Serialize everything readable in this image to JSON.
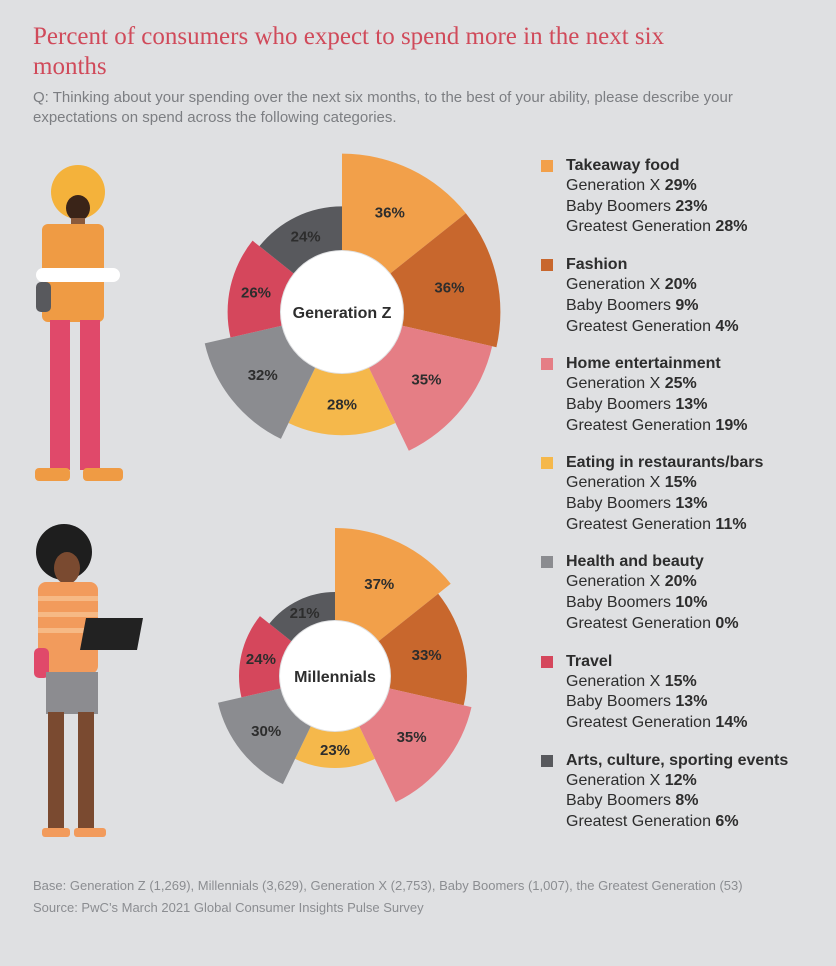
{
  "title": "Percent of consumers who expect to spend more in the next six months",
  "question": "Q: Thinking about your spending over the next six months, to the best of your ability, please describe your expectations on spend across the following categories.",
  "colors": {
    "takeaway": "#f2a04a",
    "fashion": "#c8672d",
    "home": "#e57e85",
    "eating": "#f5b84b",
    "health": "#8b8c90",
    "travel": "#d5475c",
    "arts": "#58595d"
  },
  "chart_data": [
    {
      "type": "pie",
      "title": "Generation Z",
      "categories": [
        "Takeaway food",
        "Fashion",
        "Home entertainment",
        "Eating in restaurants/bars",
        "Health and beauty",
        "Travel",
        "Arts, culture, sporting events"
      ],
      "values": [
        36,
        36,
        35,
        28,
        32,
        26,
        24
      ],
      "labels": [
        "36%",
        "36%",
        "35%",
        "28%",
        "32%",
        "26%",
        "24%"
      ]
    },
    {
      "type": "pie",
      "title": "Millennials",
      "categories": [
        "Takeaway food",
        "Fashion",
        "Home entertainment",
        "Eating in restaurants/bars",
        "Health and beauty",
        "Travel",
        "Arts, culture, sporting events"
      ],
      "values": [
        37,
        33,
        35,
        23,
        30,
        24,
        21
      ],
      "labels": [
        "37%",
        "33%",
        "35%",
        "23%",
        "30%",
        "24%",
        "21%"
      ]
    }
  ],
  "legend": [
    {
      "key": "takeaway",
      "name": "Takeaway food",
      "rows": [
        {
          "label": "Generation X",
          "value": "29%"
        },
        {
          "label": "Baby Boomers",
          "value": "23%"
        },
        {
          "label": "Greatest Generation",
          "value": "28%"
        }
      ]
    },
    {
      "key": "fashion",
      "name": "Fashion",
      "rows": [
        {
          "label": "Generation X",
          "value": "20%"
        },
        {
          "label": "Baby Boomers",
          "value": "9%"
        },
        {
          "label": "Greatest Generation",
          "value": "4%"
        }
      ]
    },
    {
      "key": "home",
      "name": "Home entertainment",
      "rows": [
        {
          "label": "Generation X",
          "value": "25%"
        },
        {
          "label": "Baby Boomers",
          "value": "13%"
        },
        {
          "label": "Greatest Generation",
          "value": "19%"
        }
      ]
    },
    {
      "key": "eating",
      "name": "Eating in restaurants/bars",
      "rows": [
        {
          "label": "Generation X",
          "value": "15%"
        },
        {
          "label": "Baby Boomers",
          "value": "13%"
        },
        {
          "label": "Greatest Generation",
          "value": "11%"
        }
      ]
    },
    {
      "key": "health",
      "name": "Health and beauty",
      "rows": [
        {
          "label": "Generation X",
          "value": "20%"
        },
        {
          "label": "Baby Boomers",
          "value": "10%"
        },
        {
          "label": "Greatest Generation",
          "value": "0%"
        }
      ]
    },
    {
      "key": "travel",
      "name": "Travel",
      "rows": [
        {
          "label": "Generation X",
          "value": "15%"
        },
        {
          "label": "Baby Boomers",
          "value": "13%"
        },
        {
          "label": "Greatest Generation",
          "value": "14%"
        }
      ]
    },
    {
      "key": "arts",
      "name": "Arts, culture, sporting events",
      "rows": [
        {
          "label": "Generation X",
          "value": "12%"
        },
        {
          "label": "Baby Boomers",
          "value": "8%"
        },
        {
          "label": "Greatest Generation",
          "value": "6%"
        }
      ]
    }
  ],
  "footer": {
    "base": "Base: Generation Z (1,269), Millennials (3,629), Generation X (2,753), Baby Boomers (1,007), the Greatest Generation (53)",
    "source": "Source: PwC’s March 2021 Global Consumer Insights Pulse Survey"
  }
}
